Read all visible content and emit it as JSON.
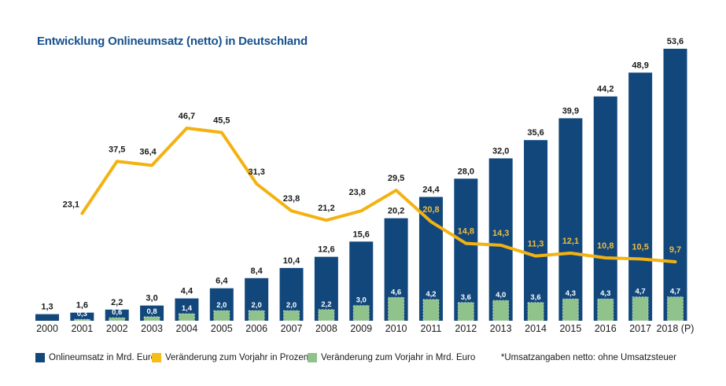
{
  "title": "Entwicklung Onlineumsatz (netto) in Deutschland",
  "footnote": "*Umsatzangaben netto: ohne Umsatzsteuer",
  "colors": {
    "title": "#17518D",
    "bar_blue": "#12477C",
    "bar_green": "#8FC38B",
    "line_yellow": "#F3B211",
    "label_dark": "#1A1A1A",
    "label_yellow_on_bar": "#EFBC3D",
    "label_white": "#FFFFFF"
  },
  "legend": {
    "items": [
      {
        "label": "Onlineumsatz in Mrd. Euro",
        "color": "#12477C"
      },
      {
        "label": "Veränderung zum Vorjahr in Prozent",
        "color": "#F5BD17"
      },
      {
        "label": "Veränderung zum Vorjahr in Mrd. Euro",
        "color": "#8FC38B"
      }
    ]
  },
  "chart_data": {
    "type": "bar",
    "title": "Entwicklung Onlineumsatz (netto) in Deutschland",
    "categories": [
      "2000",
      "2001",
      "2002",
      "2003",
      "2004",
      "2005",
      "2006",
      "2007",
      "2008",
      "2009",
      "2010",
      "2011",
      "2012",
      "2013",
      "2014",
      "2015",
      "2016",
      "2017",
      "2018 (P)"
    ],
    "series": [
      {
        "name": "Onlineumsatz in Mrd. Euro",
        "type": "bar",
        "color": "#12477C",
        "values": [
          1.3,
          1.6,
          2.2,
          3.0,
          4.4,
          6.4,
          8.4,
          10.4,
          12.6,
          15.6,
          20.2,
          24.4,
          28.0,
          32.0,
          35.6,
          39.9,
          44.2,
          48.9,
          53.6
        ]
      },
      {
        "name": "Veränderung zum Vorjahr in Mrd. Euro",
        "type": "bar",
        "color": "#8FC38B",
        "values": [
          null,
          0.3,
          0.6,
          0.8,
          1.4,
          2.0,
          2.0,
          2.0,
          2.2,
          3.0,
          4.6,
          4.2,
          3.6,
          4.0,
          3.6,
          4.3,
          4.3,
          4.7,
          4.7
        ]
      },
      {
        "name": "Veränderung zum Vorjahr in Prozent",
        "type": "line",
        "color": "#F3B211",
        "values": [
          null,
          23.1,
          37.5,
          36.4,
          46.7,
          45.5,
          31.3,
          23.8,
          21.2,
          23.8,
          29.5,
          20.8,
          14.8,
          14.3,
          11.3,
          12.1,
          10.8,
          10.5,
          9.7
        ]
      }
    ],
    "value_labels": true,
    "decimal_format": "comma",
    "ylim_bars": [
      0,
      56
    ],
    "ylim_percent": [
      0,
      50
    ],
    "grid": false,
    "axes_visible": false,
    "legend_position": "bottom"
  }
}
